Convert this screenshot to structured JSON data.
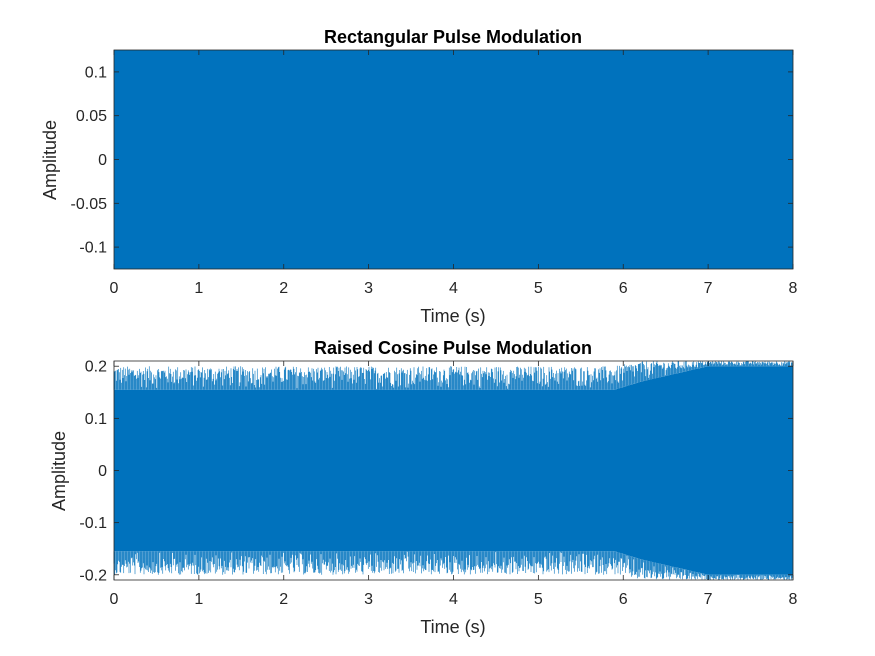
{
  "chart_data": [
    {
      "type": "line",
      "title": "Rectangular Pulse Modulation",
      "xlabel": "Time (s)",
      "ylabel": "Amplitude",
      "xlim": [
        0,
        8
      ],
      "ylim": [
        -0.125,
        0.125
      ],
      "x_ticks": [
        0,
        1,
        2,
        3,
        4,
        5,
        6,
        7,
        8
      ],
      "y_ticks": [
        -0.1,
        -0.05,
        0,
        0.05,
        0.1
      ],
      "x_tick_labels": [
        "0",
        "1",
        "2",
        "3",
        "4",
        "5",
        "6",
        "7",
        "8"
      ],
      "y_tick_labels": [
        "-0.1",
        "-0.05",
        "0",
        "0.05",
        "0.1"
      ],
      "grid": false,
      "series_color": "#0072BD",
      "envelope": {
        "t": [
          0,
          8
        ],
        "max": [
          0.125,
          0.125
        ],
        "min": [
          -0.125,
          -0.125
        ]
      }
    },
    {
      "type": "line",
      "title": "Raised Cosine Pulse Modulation",
      "xlabel": "Time (s)",
      "ylabel": "Amplitude",
      "xlim": [
        0,
        8
      ],
      "ylim": [
        -0.21,
        0.21
      ],
      "x_ticks": [
        0,
        1,
        2,
        3,
        4,
        5,
        6,
        7,
        8
      ],
      "y_ticks": [
        -0.2,
        -0.1,
        0,
        0.1,
        0.2
      ],
      "x_tick_labels": [
        "0",
        "1",
        "2",
        "3",
        "4",
        "5",
        "6",
        "7",
        "8"
      ],
      "y_tick_labels": [
        "-0.2",
        "-0.1",
        "0",
        "0.1",
        "0.2"
      ],
      "grid": false,
      "series_color": "#0072BD",
      "envelope": {
        "t": [
          0,
          5.9,
          6.2,
          7.0,
          8
        ],
        "core_max": [
          0.155,
          0.155,
          0.17,
          0.2,
          0.2
        ],
        "core_min": [
          -0.155,
          -0.155,
          -0.17,
          -0.2,
          -0.2
        ],
        "spike_max": [
          0.2,
          0.2,
          0.21,
          0.21,
          0.21
        ],
        "spike_min": [
          -0.2,
          -0.2,
          -0.21,
          -0.21,
          -0.21
        ]
      }
    }
  ]
}
